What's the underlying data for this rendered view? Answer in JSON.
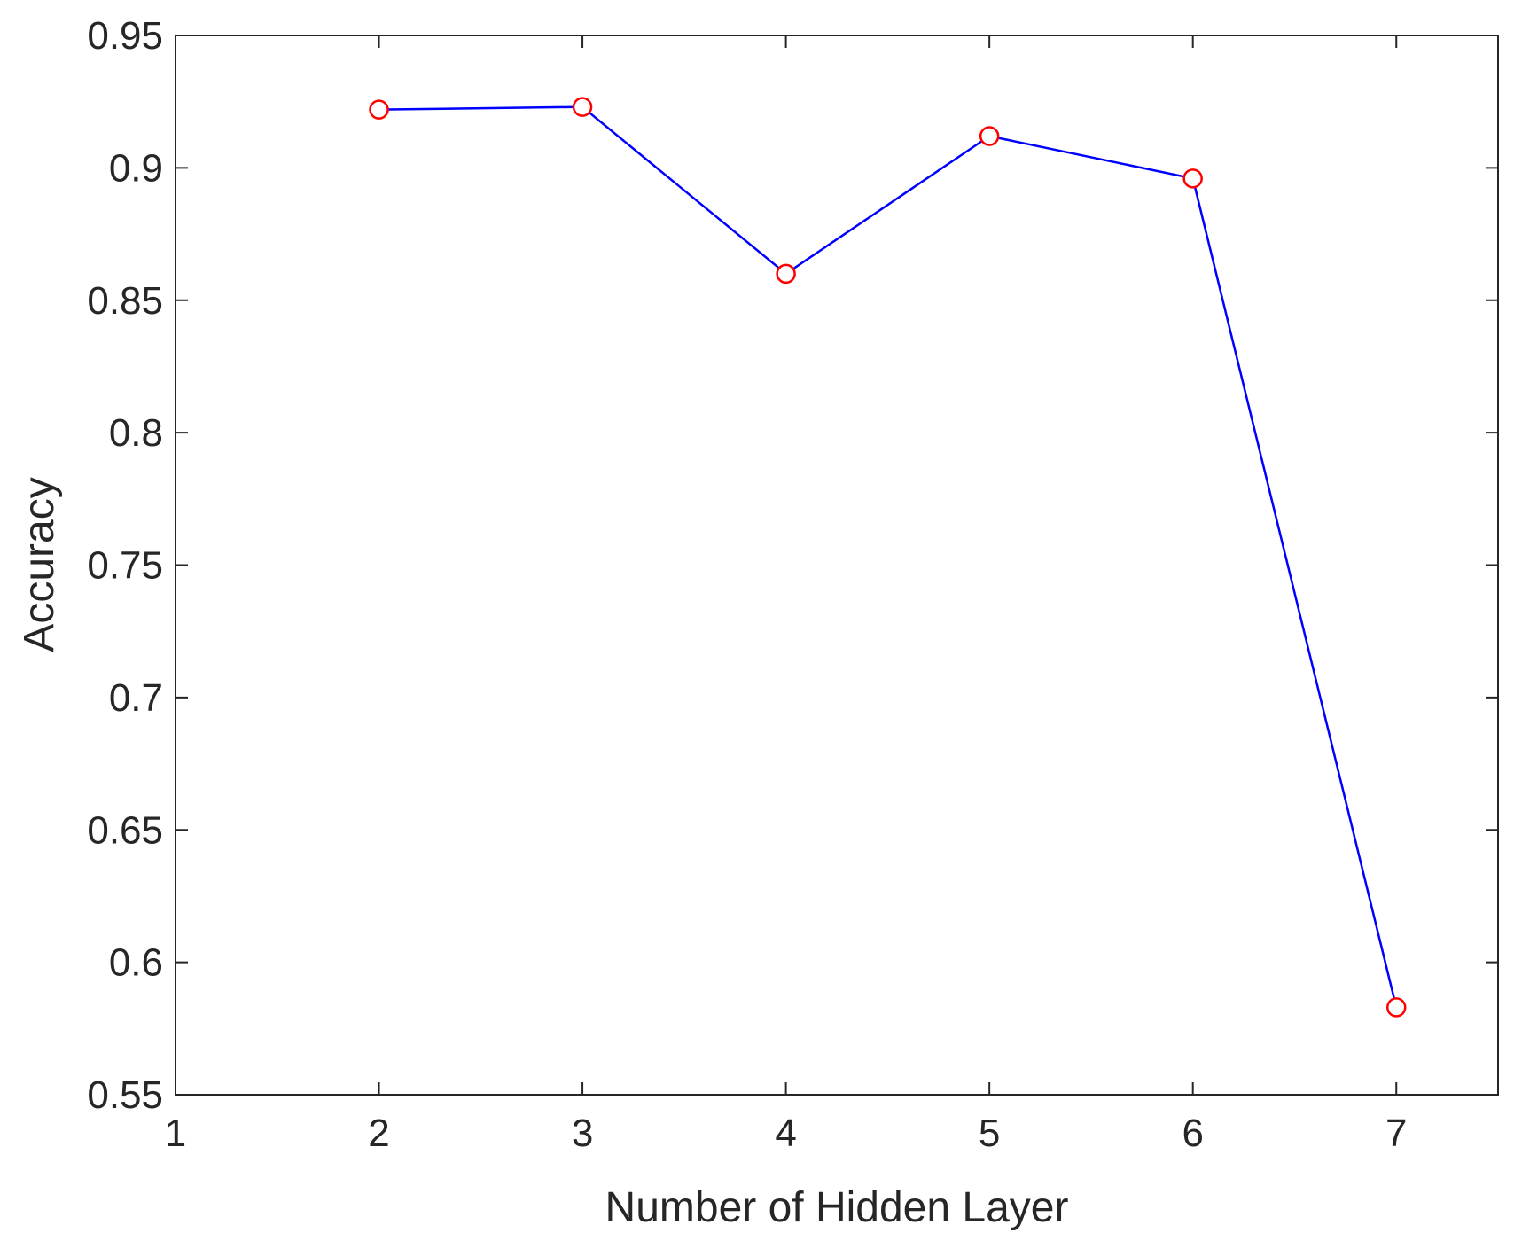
{
  "chart_data": {
    "type": "line",
    "title": "",
    "xlabel": "Number of Hidden Layer",
    "ylabel": "Accuracy",
    "xlim": [
      1,
      7.5
    ],
    "ylim": [
      0.55,
      0.95
    ],
    "xticks": [
      "1",
      "2",
      "3",
      "4",
      "5",
      "6",
      "7"
    ],
    "yticks": [
      "0.55",
      "0.6",
      "0.65",
      "0.7",
      "0.75",
      "0.8",
      "0.85",
      "0.9",
      "0.95"
    ],
    "grid": false,
    "series": [
      {
        "x": [
          2,
          3,
          4,
          5,
          6,
          7
        ],
        "y": [
          0.922,
          0.923,
          0.86,
          0.912,
          0.896,
          0.583
        ],
        "line_color": "#0000ff",
        "marker": "circle",
        "marker_color": "#ff0000"
      }
    ]
  }
}
